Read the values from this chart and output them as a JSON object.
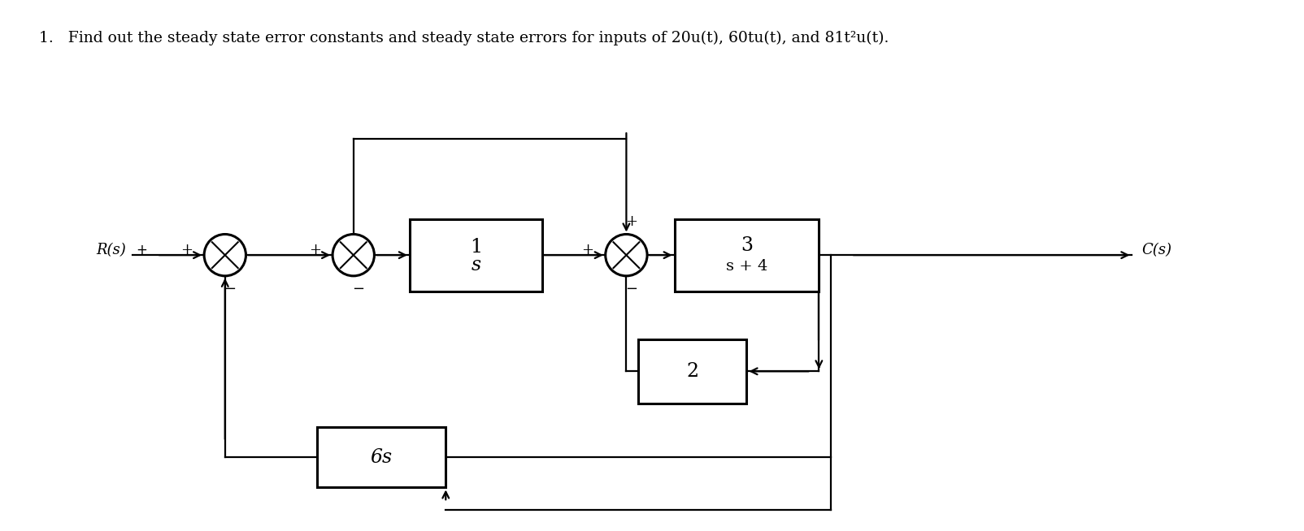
{
  "title": "1.   Find out the steady state error constants and steady state errors for inputs of 20u(t), 60tu(t), and 81t²u(t).",
  "bg_color": "#ffffff",
  "lc": "#000000",
  "blw": 2.2,
  "lw": 1.6,
  "r": 0.26,
  "sj1": [
    2.7,
    3.4
  ],
  "sj2": [
    4.3,
    3.4
  ],
  "sj3": [
    7.7,
    3.4
  ],
  "b1": [
    5.0,
    2.95,
    1.65,
    0.9
  ],
  "b2": [
    8.3,
    2.95,
    1.8,
    0.9
  ],
  "b3": [
    7.85,
    1.55,
    1.35,
    0.8
  ],
  "b4": [
    3.85,
    0.5,
    1.6,
    0.75
  ],
  "rs_label": "R(s)",
  "cs_label": "C(s)"
}
